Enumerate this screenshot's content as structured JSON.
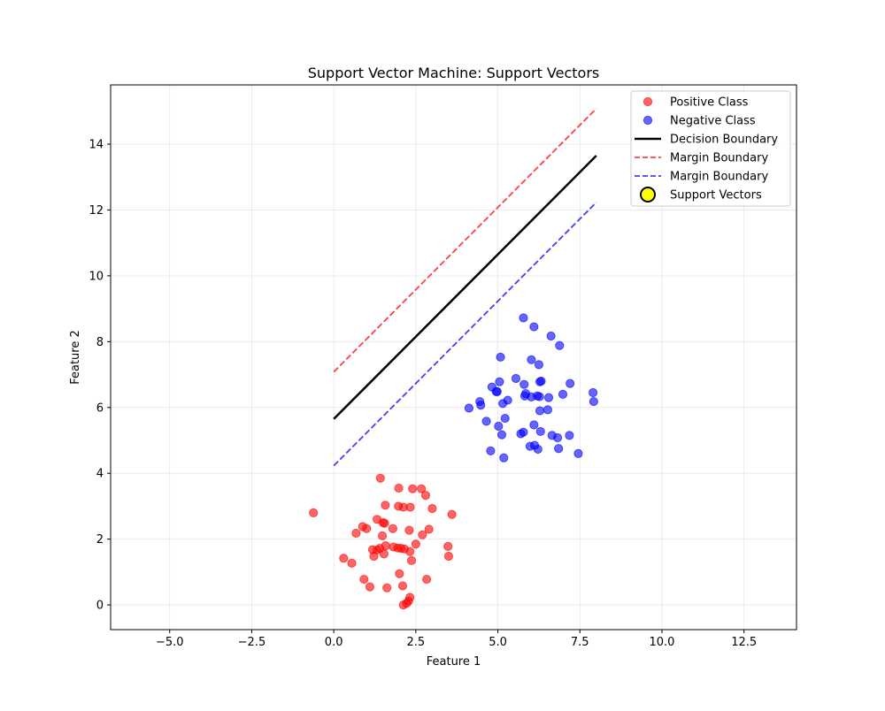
{
  "chart_data": {
    "type": "scatter",
    "title": "Support Vector Machine: Support Vectors",
    "xlabel": "Feature 1",
    "ylabel": "Feature 2",
    "xlim": [
      -6.8,
      14.1
    ],
    "ylim": [
      -0.75,
      15.8
    ],
    "xticks": [
      -5.0,
      -2.5,
      0.0,
      2.5,
      5.0,
      7.5,
      10.0,
      12.5
    ],
    "xtick_labels": [
      "−5.0",
      "−2.5",
      "0.0",
      "2.5",
      "5.0",
      "7.5",
      "10.0",
      "12.5"
    ],
    "yticks": [
      0,
      2,
      4,
      6,
      8,
      10,
      12,
      14
    ],
    "ytick_labels": [
      "0",
      "2",
      "4",
      "6",
      "8",
      "10",
      "12",
      "14"
    ],
    "grid": true,
    "legend_position": "upper right",
    "legend": [
      {
        "label": "Positive Class",
        "kind": "marker",
        "color": "#ff0000",
        "alpha": 0.6
      },
      {
        "label": "Negative Class",
        "kind": "marker",
        "color": "#0000ff",
        "alpha": 0.6
      },
      {
        "label": "Decision Boundary",
        "kind": "solid-line",
        "color": "#000000"
      },
      {
        "label": "Margin Boundary",
        "kind": "dashed-line",
        "color": "#ff0000"
      },
      {
        "label": "Margin Boundary",
        "kind": "dashed-line",
        "color": "#0000ff"
      },
      {
        "label": "Support Vectors",
        "kind": "ring-marker",
        "color": "#ffff00",
        "edge": "#000000"
      }
    ],
    "lines": [
      {
        "name": "Decision Boundary",
        "color": "#000000",
        "dashed": false,
        "x": [
          0.0,
          8.0
        ],
        "y": [
          5.65,
          13.65
        ]
      },
      {
        "name": "Margin Boundary",
        "color": "#ff0000",
        "dashed": true,
        "x": [
          0.0,
          8.0
        ],
        "y": [
          7.08,
          15.08
        ]
      },
      {
        "name": "Margin Boundary",
        "color": "#0000ff",
        "dashed": true,
        "x": [
          0.0,
          8.0
        ],
        "y": [
          4.23,
          12.23
        ]
      }
    ],
    "series": [
      {
        "name": "Positive Class",
        "color": "#ff0000",
        "points": [
          [
            -0.62,
            2.8
          ],
          [
            0.3,
            1.42
          ],
          [
            0.55,
            1.27
          ],
          [
            0.68,
            2.18
          ],
          [
            0.88,
            2.38
          ],
          [
            0.92,
            0.78
          ],
          [
            1.0,
            2.32
          ],
          [
            1.1,
            0.55
          ],
          [
            1.18,
            1.68
          ],
          [
            1.22,
            1.48
          ],
          [
            1.32,
            2.6
          ],
          [
            1.32,
            1.67
          ],
          [
            1.4,
            1.72
          ],
          [
            1.42,
            3.85
          ],
          [
            1.48,
            2.1
          ],
          [
            1.5,
            2.5
          ],
          [
            1.53,
            1.55
          ],
          [
            1.55,
            2.48
          ],
          [
            1.57,
            3.03
          ],
          [
            1.58,
            1.8
          ],
          [
            1.62,
            0.52
          ],
          [
            1.8,
            2.32
          ],
          [
            1.82,
            1.76
          ],
          [
            1.95,
            1.73
          ],
          [
            1.97,
            3.0
          ],
          [
            1.98,
            3.55
          ],
          [
            2.0,
            0.95
          ],
          [
            2.05,
            1.72
          ],
          [
            2.1,
            0.58
          ],
          [
            2.12,
            2.97
          ],
          [
            2.12,
            0.0
          ],
          [
            2.15,
            1.7
          ],
          [
            2.22,
            0.05
          ],
          [
            2.28,
            0.12
          ],
          [
            2.3,
            2.27
          ],
          [
            2.32,
            0.23
          ],
          [
            2.32,
            1.62
          ],
          [
            2.33,
            2.97
          ],
          [
            2.37,
            1.35
          ],
          [
            2.4,
            3.53
          ],
          [
            2.5,
            1.85
          ],
          [
            2.67,
            3.53
          ],
          [
            2.7,
            2.13
          ],
          [
            2.8,
            3.33
          ],
          [
            2.83,
            0.78
          ],
          [
            2.9,
            2.3
          ],
          [
            3.0,
            2.93
          ],
          [
            3.48,
            1.78
          ],
          [
            3.5,
            1.48
          ],
          [
            3.6,
            2.75
          ]
        ]
      },
      {
        "name": "Negative Class",
        "color": "#0000ff",
        "points": [
          [
            4.12,
            5.98
          ],
          [
            4.45,
            6.18
          ],
          [
            4.48,
            6.07
          ],
          [
            4.65,
            5.58
          ],
          [
            4.78,
            4.68
          ],
          [
            4.82,
            6.62
          ],
          [
            4.95,
            6.48
          ],
          [
            4.98,
            6.48
          ],
          [
            5.02,
            5.43
          ],
          [
            5.05,
            6.78
          ],
          [
            5.08,
            7.53
          ],
          [
            5.12,
            5.17
          ],
          [
            5.15,
            6.12
          ],
          [
            5.18,
            4.47
          ],
          [
            5.22,
            5.67
          ],
          [
            5.3,
            6.22
          ],
          [
            5.55,
            6.88
          ],
          [
            5.7,
            5.2
          ],
          [
            5.78,
            5.25
          ],
          [
            5.78,
            8.72
          ],
          [
            5.8,
            6.7
          ],
          [
            5.82,
            6.35
          ],
          [
            5.85,
            6.42
          ],
          [
            5.98,
            4.82
          ],
          [
            6.02,
            6.32
          ],
          [
            6.02,
            7.45
          ],
          [
            6.1,
            8.45
          ],
          [
            6.1,
            5.47
          ],
          [
            6.12,
            4.85
          ],
          [
            6.2,
            6.35
          ],
          [
            6.22,
            4.73
          ],
          [
            6.25,
            7.3
          ],
          [
            6.27,
            6.33
          ],
          [
            6.28,
            5.9
          ],
          [
            6.28,
            6.78
          ],
          [
            6.3,
            5.27
          ],
          [
            6.32,
            6.8
          ],
          [
            6.52,
            5.93
          ],
          [
            6.55,
            6.3
          ],
          [
            6.62,
            8.17
          ],
          [
            6.65,
            5.15
          ],
          [
            6.82,
            5.08
          ],
          [
            6.85,
            4.75
          ],
          [
            6.88,
            7.88
          ],
          [
            6.98,
            6.4
          ],
          [
            7.18,
            5.15
          ],
          [
            7.2,
            6.73
          ],
          [
            7.45,
            4.6
          ],
          [
            7.9,
            6.45
          ],
          [
            7.92,
            6.18
          ]
        ]
      }
    ],
    "support_vectors": []
  }
}
